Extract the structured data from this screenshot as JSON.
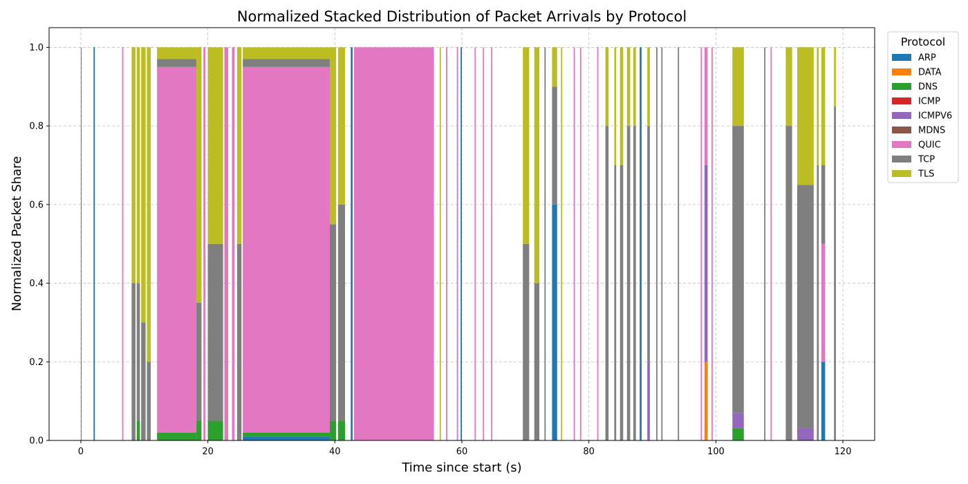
{
  "chart_data": {
    "type": "area",
    "stacked": true,
    "normalized": true,
    "title": "Normalized Stacked Distribution of Packet Arrivals by Protocol",
    "xlabel": "Time since start (s)",
    "ylabel": "Normalized Packet Share",
    "xlim": [
      -5,
      125
    ],
    "ylim": [
      0,
      1.05
    ],
    "xticks": [
      0,
      20,
      40,
      60,
      80,
      100,
      120
    ],
    "yticks": [
      "0.0",
      "0.2",
      "0.4",
      "0.6",
      "0.8",
      "1.0"
    ],
    "grid": true,
    "legend": {
      "title": "Protocol",
      "placement": "outside-top-right",
      "entries": [
        "ARP",
        "DATA",
        "DNS",
        "ICMP",
        "ICMPV6",
        "MDNS",
        "QUIC",
        "TCP",
        "TLS"
      ]
    },
    "colors": {
      "ARP": "#1f77b4",
      "DATA": "#ff7f0e",
      "DNS": "#2ca02c",
      "ICMP": "#d62728",
      "ICMPV6": "#9467bd",
      "MDNS": "#8c564b",
      "QUIC": "#e377c2",
      "TCP": "#7f7f7f",
      "TLS": "#bcbd22"
    },
    "intervals": [
      {
        "x": [
          0.0,
          0.1
        ],
        "shares": {
          "ICMPV6": 1.0
        }
      },
      {
        "x": [
          2.0,
          2.2
        ],
        "shares": {
          "ARP": 1.0
        }
      },
      {
        "x": [
          6.5,
          6.7
        ],
        "shares": {
          "QUIC": 1.0
        }
      },
      {
        "x": [
          8.0,
          8.6
        ],
        "shares": {
          "TCP": 0.4,
          "TLS": 0.6
        }
      },
      {
        "x": [
          8.8,
          9.3
        ],
        "shares": {
          "DNS": 0.05,
          "TCP": 0.35,
          "TLS": 0.6
        }
      },
      {
        "x": [
          9.5,
          10.2
        ],
        "shares": {
          "TCP": 0.3,
          "TLS": 0.7
        }
      },
      {
        "x": [
          10.4,
          11.0
        ],
        "shares": {
          "TCP": 0.2,
          "TLS": 0.8
        }
      },
      {
        "x": [
          12.0,
          18.2
        ],
        "shares": {
          "DNS": 0.02,
          "QUIC": 0.93,
          "TCP": 0.02,
          "TLS": 0.03
        }
      },
      {
        "x": [
          18.2,
          19.0
        ],
        "shares": {
          "DNS": 0.05,
          "TCP": 0.3,
          "TLS": 0.65
        }
      },
      {
        "x": [
          19.3,
          19.6
        ],
        "shares": {
          "QUIC": 1.0
        }
      },
      {
        "x": [
          20.0,
          22.4
        ],
        "shares": {
          "DNS": 0.05,
          "TCP": 0.45,
          "TLS": 0.5
        }
      },
      {
        "x": [
          22.6,
          23.2
        ],
        "shares": {
          "QUIC": 1.0
        }
      },
      {
        "x": [
          23.8,
          24.2
        ],
        "shares": {
          "QUIC": 1.0
        }
      },
      {
        "x": [
          24.6,
          25.3
        ],
        "shares": {
          "TCP": 0.5,
          "TLS": 0.5
        }
      },
      {
        "x": [
          25.5,
          39.2
        ],
        "shares": {
          "ARP": 0.01,
          "DNS": 0.01,
          "QUIC": 0.93,
          "TCP": 0.02,
          "TLS": 0.03
        }
      },
      {
        "x": [
          39.2,
          40.2
        ],
        "shares": {
          "DNS": 0.05,
          "TCP": 0.5,
          "TLS": 0.45
        }
      },
      {
        "x": [
          40.5,
          41.6
        ],
        "shares": {
          "DNS": 0.05,
          "TCP": 0.55,
          "TLS": 0.4
        }
      },
      {
        "x": [
          42.5,
          42.8
        ],
        "shares": {
          "ARP": 1.0
        }
      },
      {
        "x": [
          43.0,
          55.6
        ],
        "shares": {
          "QUIC": 1.0
        }
      },
      {
        "x": [
          56.5,
          56.7
        ],
        "shares": {
          "TLS": 1.0
        }
      },
      {
        "x": [
          57.5,
          57.7
        ],
        "shares": {
          "QUIC": 1.0
        }
      },
      {
        "x": [
          59.2,
          59.4
        ],
        "shares": {
          "QUIC": 1.0
        }
      },
      {
        "x": [
          59.8,
          60.0
        ],
        "shares": {
          "ARP": 1.0
        }
      },
      {
        "x": [
          62.0,
          62.2
        ],
        "shares": {
          "QUIC": 1.0
        }
      },
      {
        "x": [
          63.3,
          63.5
        ],
        "shares": {
          "QUIC": 1.0
        }
      },
      {
        "x": [
          64.6,
          64.8
        ],
        "shares": {
          "QUIC": 1.0
        }
      },
      {
        "x": [
          69.6,
          70.6
        ],
        "shares": {
          "TCP": 0.5,
          "TLS": 0.5
        }
      },
      {
        "x": [
          71.4,
          72.2
        ],
        "shares": {
          "TCP": 0.4,
          "TLS": 0.6
        }
      },
      {
        "x": [
          73.0,
          73.2
        ],
        "shares": {
          "TCP": 1.0
        }
      },
      {
        "x": [
          74.2,
          75.0
        ],
        "shares": {
          "ARP": 0.6,
          "TCP": 0.3,
          "TLS": 0.1
        }
      },
      {
        "x": [
          75.6,
          75.8
        ],
        "shares": {
          "TLS": 1.0
        }
      },
      {
        "x": [
          77.6,
          77.8
        ],
        "shares": {
          "QUIC": 1.0
        }
      },
      {
        "x": [
          78.6,
          78.8
        ],
        "shares": {
          "QUIC": 1.0
        }
      },
      {
        "x": [
          81.3,
          81.5
        ],
        "shares": {
          "QUIC": 1.0
        }
      },
      {
        "x": [
          82.6,
          83.1
        ],
        "shares": {
          "TCP": 0.8,
          "TLS": 0.2
        }
      },
      {
        "x": [
          84.0,
          84.3
        ],
        "shares": {
          "TCP": 0.7,
          "TLS": 0.3
        }
      },
      {
        "x": [
          84.9,
          85.4
        ],
        "shares": {
          "TCP": 0.7,
          "TLS": 0.3
        }
      },
      {
        "x": [
          86.0,
          86.5
        ],
        "shares": {
          "TCP": 0.8,
          "TLS": 0.2
        }
      },
      {
        "x": [
          87.0,
          87.4
        ],
        "shares": {
          "TCP": 0.8,
          "TLS": 0.2
        }
      },
      {
        "x": [
          88.0,
          88.3
        ],
        "shares": {
          "ARP": 1.0
        }
      },
      {
        "x": [
          89.2,
          89.6
        ],
        "shares": {
          "ICMPV6": 0.2,
          "TCP": 0.6,
          "TLS": 0.2
        }
      },
      {
        "x": [
          90.6,
          90.8
        ],
        "shares": {
          "TCP": 1.0
        }
      },
      {
        "x": [
          91.4,
          91.6
        ],
        "shares": {
          "TCP": 1.0
        }
      },
      {
        "x": [
          94.0,
          94.2
        ],
        "shares": {
          "TCP": 1.0
        }
      },
      {
        "x": [
          97.6,
          97.8
        ],
        "shares": {
          "QUIC": 1.0
        }
      },
      {
        "x": [
          98.2,
          98.7
        ],
        "shares": {
          "DATA": 0.2,
          "ICMPV6": 0.5,
          "QUIC": 0.3
        }
      },
      {
        "x": [
          99.3,
          99.5
        ],
        "shares": {
          "QUIC": 1.0
        }
      },
      {
        "x": [
          102.6,
          104.4
        ],
        "shares": {
          "DNS": 0.03,
          "ICMPV6": 0.04,
          "TCP": 0.73,
          "TLS": 0.2
        }
      },
      {
        "x": [
          107.6,
          107.8
        ],
        "shares": {
          "TCP": 1.0
        }
      },
      {
        "x": [
          108.6,
          108.8
        ],
        "shares": {
          "QUIC": 1.0
        }
      },
      {
        "x": [
          111.0,
          112.0
        ],
        "shares": {
          "TCP": 0.8,
          "TLS": 0.2
        }
      },
      {
        "x": [
          112.8,
          115.4
        ],
        "shares": {
          "ICMPV6": 0.03,
          "TCP": 0.62,
          "TLS": 0.35
        }
      },
      {
        "x": [
          115.9,
          116.2
        ],
        "shares": {
          "TCP": 0.7,
          "TLS": 0.3
        }
      },
      {
        "x": [
          116.6,
          117.2
        ],
        "shares": {
          "ARP": 0.2,
          "QUIC": 0.3,
          "TCP": 0.2,
          "TLS": 0.3
        }
      },
      {
        "x": [
          118.6,
          118.9
        ],
        "shares": {
          "TCP": 0.85,
          "TLS": 0.15
        }
      }
    ]
  }
}
